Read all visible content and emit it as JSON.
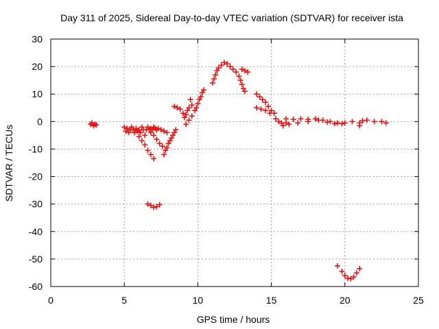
{
  "chart_data": {
    "type": "scatter",
    "title": "Day 311 of 2025, Sidereal Day-to-day VTEC variation (SDTVAR) for receiver ista",
    "xlabel": "GPS time / hours",
    "ylabel": "SDTVAR / TECUs",
    "xlim": [
      0,
      25
    ],
    "ylim": [
      -60,
      30
    ],
    "xticks": [
      0,
      5,
      10,
      15,
      20,
      25
    ],
    "yticks": [
      -60,
      -50,
      -40,
      -30,
      -20,
      -10,
      0,
      10,
      20,
      30
    ],
    "xtick_labels": [
      "0",
      "5",
      "10",
      "15",
      "20",
      "25"
    ],
    "ytick_labels": [
      "-60",
      "-50",
      "-40",
      "-30",
      "-20",
      "-10",
      "0",
      "10",
      "20",
      "30"
    ],
    "grid": true,
    "marker": "plus",
    "color": "#ff0000",
    "series": [
      {
        "name": "SDTVAR",
        "points": [
          [
            2.7,
            -1.0
          ],
          [
            2.8,
            -0.5
          ],
          [
            2.9,
            -1.5
          ],
          [
            3.0,
            -1.0
          ],
          [
            3.1,
            -1.2
          ],
          [
            5.0,
            -2.0
          ],
          [
            5.1,
            -3.5
          ],
          [
            5.2,
            -2.5
          ],
          [
            5.3,
            -4.0
          ],
          [
            5.4,
            -3.0
          ],
          [
            5.5,
            -2.0
          ],
          [
            5.6,
            -3.0
          ],
          [
            5.7,
            -4.0
          ],
          [
            5.8,
            -2.5
          ],
          [
            5.9,
            -3.5
          ],
          [
            6.0,
            -3.0
          ],
          [
            6.1,
            -4.0
          ],
          [
            6.2,
            -2.0
          ],
          [
            6.3,
            -3.0
          ],
          [
            6.4,
            -5.0
          ],
          [
            6.5,
            -3.0
          ],
          [
            6.6,
            -2.0
          ],
          [
            6.7,
            -3.0
          ],
          [
            6.8,
            -2.5
          ],
          [
            6.9,
            -3.0
          ],
          [
            7.0,
            -2.0
          ],
          [
            7.1,
            -2.5
          ],
          [
            7.2,
            -3.0
          ],
          [
            7.3,
            -2.5
          ],
          [
            7.5,
            -3.0
          ],
          [
            7.7,
            -3.5
          ],
          [
            7.9,
            -4.0
          ],
          [
            6.0,
            -5.5
          ],
          [
            6.2,
            -7.0
          ],
          [
            6.4,
            -8.5
          ],
          [
            6.6,
            -10.5
          ],
          [
            6.8,
            -12.0
          ],
          [
            7.0,
            -13.5
          ],
          [
            6.8,
            -4.0
          ],
          [
            7.0,
            -5.0
          ],
          [
            7.2,
            -6.5
          ],
          [
            7.4,
            -8.0
          ],
          [
            7.6,
            -9.0
          ],
          [
            7.7,
            -12.0
          ],
          [
            7.8,
            -10.5
          ],
          [
            7.9,
            -9.5
          ],
          [
            8.0,
            -8.0
          ],
          [
            8.1,
            -7.0
          ],
          [
            8.2,
            -6.0
          ],
          [
            8.3,
            -5.0
          ],
          [
            8.4,
            -4.0
          ],
          [
            8.5,
            -3.0
          ],
          [
            6.6,
            -30.0
          ],
          [
            6.8,
            -30.5
          ],
          [
            7.0,
            -31.2
          ],
          [
            7.2,
            -31.0
          ],
          [
            7.4,
            -30.2
          ],
          [
            8.4,
            5.5
          ],
          [
            8.6,
            5.0
          ],
          [
            8.8,
            4.5
          ],
          [
            9.0,
            3.0
          ],
          [
            9.1,
            1.5
          ],
          [
            9.2,
            2.5
          ],
          [
            9.3,
            4.0
          ],
          [
            9.4,
            5.0
          ],
          [
            9.5,
            8.0
          ],
          [
            9.6,
            6.0
          ],
          [
            9.2,
            -1.0
          ],
          [
            9.4,
            0.5
          ],
          [
            9.6,
            2.0
          ],
          [
            9.8,
            4.0
          ],
          [
            9.9,
            5.0
          ],
          [
            10.0,
            6.5
          ],
          [
            10.1,
            8.0
          ],
          [
            10.2,
            9.0
          ],
          [
            10.3,
            10.5
          ],
          [
            10.4,
            11.5
          ],
          [
            11.0,
            14.0
          ],
          [
            11.1,
            15.5
          ],
          [
            11.2,
            17.0
          ],
          [
            11.3,
            18.5
          ],
          [
            11.4,
            19.5
          ],
          [
            11.6,
            20.5
          ],
          [
            11.8,
            21.5
          ],
          [
            12.0,
            21.0
          ],
          [
            12.2,
            20.0
          ],
          [
            12.4,
            19.0
          ],
          [
            12.6,
            18.0
          ],
          [
            12.8,
            16.5
          ],
          [
            12.9,
            15.0
          ],
          [
            13.0,
            13.5
          ],
          [
            13.1,
            12.0
          ],
          [
            13.2,
            11.0
          ],
          [
            13.0,
            19.0
          ],
          [
            13.2,
            18.5
          ],
          [
            13.4,
            18.0
          ],
          [
            14.0,
            10.0
          ],
          [
            14.2,
            9.0
          ],
          [
            14.4,
            8.0
          ],
          [
            14.6,
            7.0
          ],
          [
            14.8,
            5.5
          ],
          [
            15.0,
            4.0
          ],
          [
            15.2,
            3.0
          ],
          [
            14.0,
            5.0
          ],
          [
            14.3,
            4.5
          ],
          [
            14.6,
            4.0
          ],
          [
            14.9,
            3.0
          ],
          [
            15.3,
            1.0
          ],
          [
            15.5,
            0.0
          ],
          [
            15.7,
            -0.5
          ],
          [
            15.8,
            -1.5
          ],
          [
            16.0,
            -0.5
          ],
          [
            16.0,
            1.0
          ],
          [
            16.5,
            0.8
          ],
          [
            17.0,
            1.0
          ],
          [
            17.5,
            0.8
          ],
          [
            18.0,
            1.0
          ],
          [
            18.5,
            0.5
          ],
          [
            19.0,
            0.0
          ],
          [
            19.5,
            -0.5
          ],
          [
            20.0,
            -0.5
          ],
          [
            20.5,
            0.0
          ],
          [
            16.2,
            -1.0
          ],
          [
            16.8,
            -0.5
          ],
          [
            17.5,
            0.0
          ],
          [
            18.2,
            0.5
          ],
          [
            18.8,
            -0.2
          ],
          [
            19.3,
            -0.8
          ],
          [
            19.8,
            -0.8
          ],
          [
            21.0,
            -0.5
          ],
          [
            21.0,
            -1.5
          ],
          [
            21.2,
            0.3
          ],
          [
            21.5,
            0.5
          ],
          [
            22.0,
            0.0
          ],
          [
            22.5,
            0.0
          ],
          [
            22.8,
            -0.5
          ],
          [
            19.5,
            -52.5
          ],
          [
            19.8,
            -54.5
          ],
          [
            20.0,
            -56.0
          ],
          [
            20.2,
            -57.0
          ],
          [
            20.4,
            -57.2
          ],
          [
            20.6,
            -56.5
          ],
          [
            20.8,
            -55.0
          ],
          [
            21.0,
            -53.5
          ]
        ]
      }
    ]
  }
}
